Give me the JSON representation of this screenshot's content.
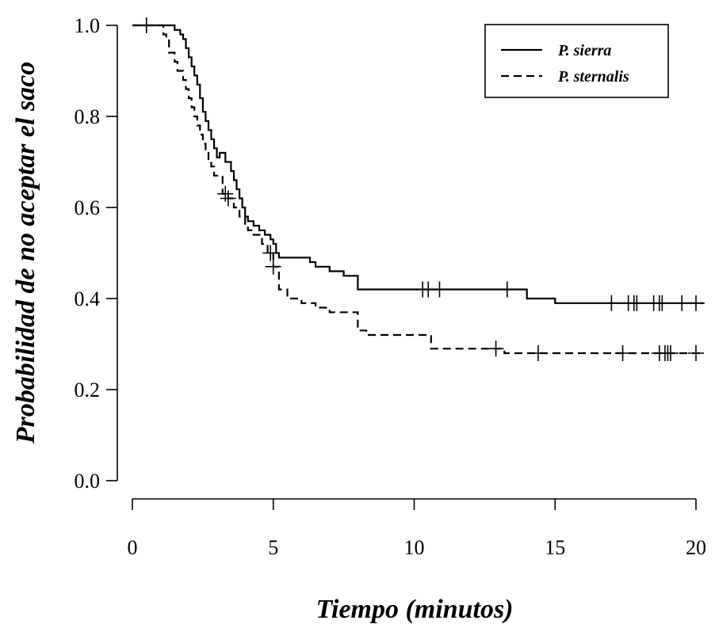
{
  "chart_data": {
    "type": "line",
    "subtype": "step",
    "xlabel": "Tiempo (minutos)",
    "ylabel": "Probabilidad de no aceptar el saco",
    "xlim": [
      0,
      20
    ],
    "ylim": [
      0,
      1
    ],
    "x_ticks": [
      "0",
      "5",
      "10",
      "15",
      "20"
    ],
    "y_ticks": [
      "0.0",
      "0.2",
      "0.4",
      "0.6",
      "0.8",
      "1.0"
    ],
    "grid": false,
    "legend_position": "top-right",
    "series": [
      {
        "name": "P. sierra",
        "line_style": "solid",
        "x": [
          0,
          1.5,
          1.7,
          1.8,
          1.9,
          2.0,
          2.1,
          2.2,
          2.3,
          2.4,
          2.5,
          2.6,
          2.7,
          2.8,
          2.9,
          3.0,
          3.1,
          3.3,
          3.5,
          3.6,
          3.7,
          3.8,
          3.9,
          4.0,
          4.1,
          4.3,
          4.5,
          4.7,
          4.9,
          5.0,
          5.1,
          5.2,
          6.3,
          6.5,
          7.0,
          7.5,
          8.0,
          14.0,
          15.0,
          20.3
        ],
        "y": [
          1.0,
          0.99,
          0.98,
          0.97,
          0.95,
          0.93,
          0.91,
          0.89,
          0.87,
          0.84,
          0.81,
          0.79,
          0.77,
          0.75,
          0.73,
          0.71,
          0.72,
          0.7,
          0.68,
          0.66,
          0.64,
          0.62,
          0.6,
          0.58,
          0.57,
          0.56,
          0.55,
          0.54,
          0.53,
          0.52,
          0.5,
          0.49,
          0.48,
          0.47,
          0.46,
          0.45,
          0.42,
          0.4,
          0.39,
          0.39
        ],
        "censored_x": [
          0.5,
          10.3,
          10.5,
          10.9,
          13.3,
          17.0,
          17.6,
          17.8,
          17.9,
          18.5,
          18.7,
          18.8,
          19.5,
          20.0
        ]
      },
      {
        "name": "P. sternalis",
        "line_style": "dashed",
        "x": [
          0,
          1.1,
          1.2,
          1.3,
          1.5,
          1.6,
          1.8,
          1.9,
          2.0,
          2.1,
          2.2,
          2.3,
          2.4,
          2.5,
          2.6,
          2.7,
          2.8,
          2.9,
          3.2,
          3.4,
          3.6,
          3.8,
          4.0,
          4.1,
          4.3,
          4.6,
          4.8,
          5.0,
          5.2,
          5.5,
          6.0,
          6.5,
          7.0,
          8.0,
          8.3,
          10.6,
          13.2,
          20.3
        ],
        "y": [
          1.0,
          0.98,
          0.97,
          0.94,
          0.92,
          0.9,
          0.88,
          0.86,
          0.84,
          0.82,
          0.8,
          0.78,
          0.76,
          0.74,
          0.72,
          0.7,
          0.69,
          0.67,
          0.63,
          0.62,
          0.6,
          0.58,
          0.56,
          0.55,
          0.54,
          0.52,
          0.5,
          0.47,
          0.42,
          0.4,
          0.39,
          0.38,
          0.37,
          0.33,
          0.32,
          0.29,
          0.28,
          0.28
        ],
        "censored_x": [
          3.3,
          3.4,
          4.9,
          5.0,
          12.9,
          14.4,
          17.4,
          18.7,
          18.9,
          19.0,
          19.1,
          20.0
        ]
      }
    ]
  }
}
